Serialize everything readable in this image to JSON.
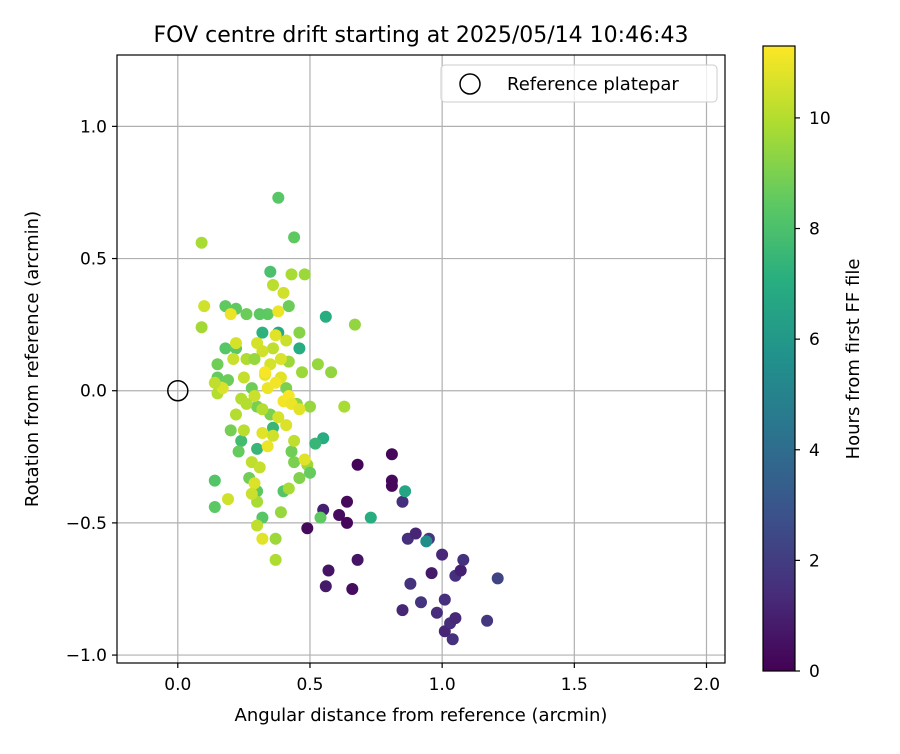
{
  "chart_data": {
    "type": "scatter",
    "title": "FOV centre drift starting at 2025/05/14 10:46:43",
    "xlabel": "Angular distance from reference (arcmin)",
    "ylabel": "Rotation from reference (arcmin)",
    "colorbar_label": "Hours from first FF file",
    "xlim": [
      -0.23,
      2.07
    ],
    "ylim": [
      -1.03,
      1.27
    ],
    "x_ticks": [
      0.0,
      0.5,
      1.0,
      1.5,
      2.0
    ],
    "x_tick_labels": [
      "0.0",
      "0.5",
      "1.0",
      "1.5",
      "2.0"
    ],
    "y_ticks": [
      -1.0,
      -0.5,
      0.0,
      0.5,
      1.0
    ],
    "y_tick_labels": [
      "−1.0",
      "−0.5",
      "0.0",
      "0.5",
      "1.0"
    ],
    "colorbar_range": [
      0,
      11.3
    ],
    "colorbar_ticks": [
      0,
      2,
      4,
      6,
      8,
      10
    ],
    "colorbar_tick_labels": [
      "0",
      "2",
      "4",
      "6",
      "8",
      "10"
    ],
    "grid": true,
    "legend_position": "top-right",
    "legend": [
      {
        "label": "Reference platepar",
        "marker": "open-circle"
      }
    ],
    "reference_point": {
      "x": 0.0,
      "y": 0.0
    },
    "colormap": "viridis",
    "series": [
      {
        "points": [
          [
            0.81,
            -0.24,
            0.2
          ],
          [
            0.81,
            -0.34,
            0.3
          ],
          [
            0.81,
            -0.36,
            0.2
          ],
          [
            0.68,
            -0.28,
            0.1
          ],
          [
            0.64,
            -0.42,
            0.3
          ],
          [
            0.61,
            -0.47,
            0.4
          ],
          [
            0.64,
            -0.5,
            0.2
          ],
          [
            0.55,
            -0.45,
            1.0
          ],
          [
            0.49,
            -0.52,
            0.3
          ],
          [
            0.57,
            -0.68,
            0.6
          ],
          [
            0.56,
            -0.74,
            0.8
          ],
          [
            0.66,
            -0.75,
            0.4
          ],
          [
            0.68,
            -0.64,
            0.6
          ],
          [
            0.85,
            -0.42,
            1.5
          ],
          [
            0.87,
            -0.56,
            1.5
          ],
          [
            0.9,
            -0.54,
            1.2
          ],
          [
            0.95,
            -0.56,
            1.8
          ],
          [
            0.85,
            -0.83,
            1.2
          ],
          [
            0.88,
            -0.73,
            1.6
          ],
          [
            0.92,
            -0.8,
            1.7
          ],
          [
            0.96,
            -0.69,
            0.8
          ],
          [
            0.98,
            -0.84,
            1.4
          ],
          [
            1.0,
            -0.62,
            1.3
          ],
          [
            1.01,
            -0.79,
            1.5
          ],
          [
            1.01,
            -0.91,
            1.2
          ],
          [
            1.03,
            -0.88,
            1.4
          ],
          [
            1.04,
            -0.94,
            1.6
          ],
          [
            1.05,
            -0.86,
            1.3
          ],
          [
            1.05,
            -0.7,
            1.5
          ],
          [
            1.07,
            -0.68,
            1.0
          ],
          [
            1.08,
            -0.64,
            1.6
          ],
          [
            1.17,
            -0.87,
            1.8
          ],
          [
            1.21,
            -0.71,
            2.3
          ],
          [
            0.94,
            -0.57,
            5.5
          ],
          [
            0.86,
            -0.38,
            6.6
          ],
          [
            0.73,
            -0.48,
            7.0
          ],
          [
            0.55,
            -0.18,
            7.0
          ],
          [
            0.52,
            -0.2,
            7.5
          ],
          [
            0.56,
            0.28,
            7.0
          ],
          [
            0.46,
            0.16,
            7.0
          ],
          [
            0.3,
            -0.22,
            7.5
          ],
          [
            0.24,
            -0.19,
            7.8
          ],
          [
            0.36,
            -0.14,
            7.5
          ],
          [
            0.38,
            0.22,
            6.8
          ],
          [
            0.32,
            0.22,
            7.2
          ],
          [
            0.35,
            0.45,
            8.0
          ],
          [
            0.38,
            0.73,
            8.3
          ],
          [
            0.44,
            0.58,
            8.5
          ],
          [
            0.42,
            0.32,
            8.7
          ],
          [
            0.34,
            0.29,
            8.5
          ],
          [
            0.31,
            0.29,
            8.4
          ],
          [
            0.26,
            0.29,
            8.7
          ],
          [
            0.22,
            0.31,
            8.5
          ],
          [
            0.18,
            0.32,
            8.5
          ],
          [
            0.18,
            0.16,
            8.3
          ],
          [
            0.22,
            0.16,
            8.4
          ],
          [
            0.15,
            0.1,
            8.8
          ],
          [
            0.15,
            0.05,
            8.6
          ],
          [
            0.19,
            0.04,
            8.7
          ],
          [
            0.28,
            0.01,
            8.7
          ],
          [
            0.3,
            -0.06,
            8.9
          ],
          [
            0.35,
            -0.09,
            9.0
          ],
          [
            0.41,
            0.01,
            9.0
          ],
          [
            0.46,
            0.22,
            9.2
          ],
          [
            0.45,
            -0.05,
            9.3
          ],
          [
            0.5,
            -0.06,
            9.5
          ],
          [
            0.49,
            -0.28,
            9.6
          ],
          [
            0.44,
            -0.27,
            9.0
          ],
          [
            0.43,
            -0.23,
            8.8
          ],
          [
            0.46,
            -0.33,
            9.1
          ],
          [
            0.5,
            -0.31,
            8.6
          ],
          [
            0.4,
            -0.38,
            8.2
          ],
          [
            0.3,
            -0.38,
            8.4
          ],
          [
            0.27,
            -0.33,
            8.8
          ],
          [
            0.23,
            -0.23,
            8.6
          ],
          [
            0.2,
            -0.15,
            8.9
          ],
          [
            0.14,
            -0.34,
            8.2
          ],
          [
            0.14,
            -0.44,
            8.4
          ],
          [
            0.32,
            -0.48,
            8.3
          ],
          [
            0.54,
            -0.48,
            8.5
          ],
          [
            0.39,
            -0.46,
            9.5
          ],
          [
            0.42,
            -0.37,
            9.8
          ],
          [
            0.37,
            -0.56,
            9.6
          ],
          [
            0.32,
            -0.56,
            10.8
          ],
          [
            0.19,
            -0.41,
            10.5
          ],
          [
            0.3,
            -0.51,
            10.2
          ],
          [
            0.3,
            -0.42,
            9.8
          ],
          [
            0.37,
            -0.64,
            9.9
          ],
          [
            0.28,
            -0.27,
            10.2
          ],
          [
            0.31,
            -0.29,
            10.3
          ],
          [
            0.24,
            -0.03,
            10.0
          ],
          [
            0.29,
            -0.02,
            10.4
          ],
          [
            0.33,
            0.06,
            10.9
          ],
          [
            0.35,
            0.1,
            10.6
          ],
          [
            0.39,
            0.05,
            10.8
          ],
          [
            0.36,
            0.16,
            10.2
          ],
          [
            0.36,
            0.4,
            10.1
          ],
          [
            0.4,
            0.37,
            10.5
          ],
          [
            0.43,
            0.44,
            9.8
          ],
          [
            0.48,
            0.44,
            9.6
          ],
          [
            0.42,
            0.11,
            9.6
          ],
          [
            0.47,
            0.07,
            9.6
          ],
          [
            0.53,
            0.1,
            9.5
          ],
          [
            0.58,
            0.07,
            9.4
          ],
          [
            0.63,
            -0.06,
            9.8
          ],
          [
            0.67,
            0.25,
            9.4
          ],
          [
            0.09,
            0.56,
            9.8
          ],
          [
            0.1,
            0.32,
            10.5
          ],
          [
            0.09,
            0.24,
            9.7
          ],
          [
            0.15,
            -0.01,
            10.0
          ],
          [
            0.17,
            0.01,
            10.7
          ],
          [
            0.14,
            0.03,
            10.2
          ],
          [
            0.21,
            0.12,
            10.4
          ],
          [
            0.22,
            0.18,
            10.6
          ],
          [
            0.2,
            0.29,
            11.0
          ],
          [
            0.25,
            0.05,
            10.3
          ],
          [
            0.22,
            -0.09,
            10.0
          ],
          [
            0.26,
            -0.05,
            10.0
          ],
          [
            0.25,
            -0.15,
            10.1
          ],
          [
            0.32,
            -0.07,
            10.0
          ],
          [
            0.32,
            -0.16,
            10.8
          ],
          [
            0.34,
            -0.21,
            11.0
          ],
          [
            0.36,
            -0.17,
            10.5
          ],
          [
            0.38,
            -0.1,
            10.6
          ],
          [
            0.4,
            -0.04,
            11.1
          ],
          [
            0.42,
            -0.02,
            11.2
          ],
          [
            0.43,
            -0.05,
            11.0
          ],
          [
            0.41,
            -0.13,
            10.7
          ],
          [
            0.44,
            -0.19,
            10.2
          ],
          [
            0.46,
            -0.07,
            10.8
          ],
          [
            0.48,
            -0.26,
            10.8
          ],
          [
            0.3,
            0.18,
            10.6
          ],
          [
            0.32,
            0.15,
            10.5
          ],
          [
            0.38,
            0.3,
            11.0
          ],
          [
            0.37,
            0.21,
            10.8
          ],
          [
            0.39,
            0.12,
            10.7
          ],
          [
            0.41,
            0.19,
            10.4
          ],
          [
            0.34,
            0.01,
            11.0
          ],
          [
            0.37,
            0.03,
            11.1
          ],
          [
            0.33,
            0.07,
            11.2
          ],
          [
            0.29,
            -0.35,
            10.7
          ],
          [
            0.28,
            -0.39,
            10.4
          ],
          [
            0.26,
            0.12,
            9.9
          ],
          [
            0.29,
            0.12,
            9.5
          ]
        ]
      }
    ]
  }
}
